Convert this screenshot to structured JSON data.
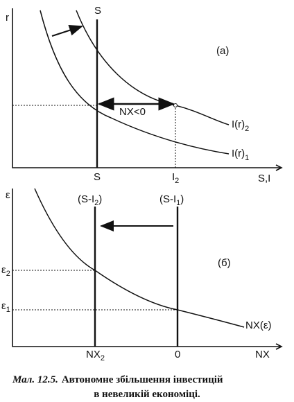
{
  "panel_a": {
    "y_axis_label": "r",
    "x_axis_label": "S,I",
    "saving_label": "S",
    "saving_tick": "S",
    "investment_tick": {
      "base": "I",
      "sub": "2"
    },
    "panel_label": "(a)",
    "arrow_label": "NX<0",
    "curve_2": {
      "base": "I(r)",
      "sub": "2"
    },
    "curve_1": {
      "base": "I(r)",
      "sub": "1"
    }
  },
  "panel_b": {
    "y_axis_label": "ε",
    "x_axis_label": "NX",
    "panel_label": "(б)",
    "line_2": {
      "pre": "(S-I",
      "sub": "2",
      "post": ")"
    },
    "line_1": {
      "pre": "(S-I",
      "sub": "1",
      "post": ")"
    },
    "rate_2": {
      "base": "ε",
      "sub": "2"
    },
    "rate_1": {
      "base": "ε",
      "sub": "1"
    },
    "curve": "NX(ε)",
    "tick_2": {
      "base": "NX",
      "sub": "2"
    },
    "tick_zero": "0"
  },
  "caption": {
    "number": "Мал. 12.5.",
    "line1": "Автономне збільшення інвестицій",
    "line2": "в невеликій економіці."
  }
}
